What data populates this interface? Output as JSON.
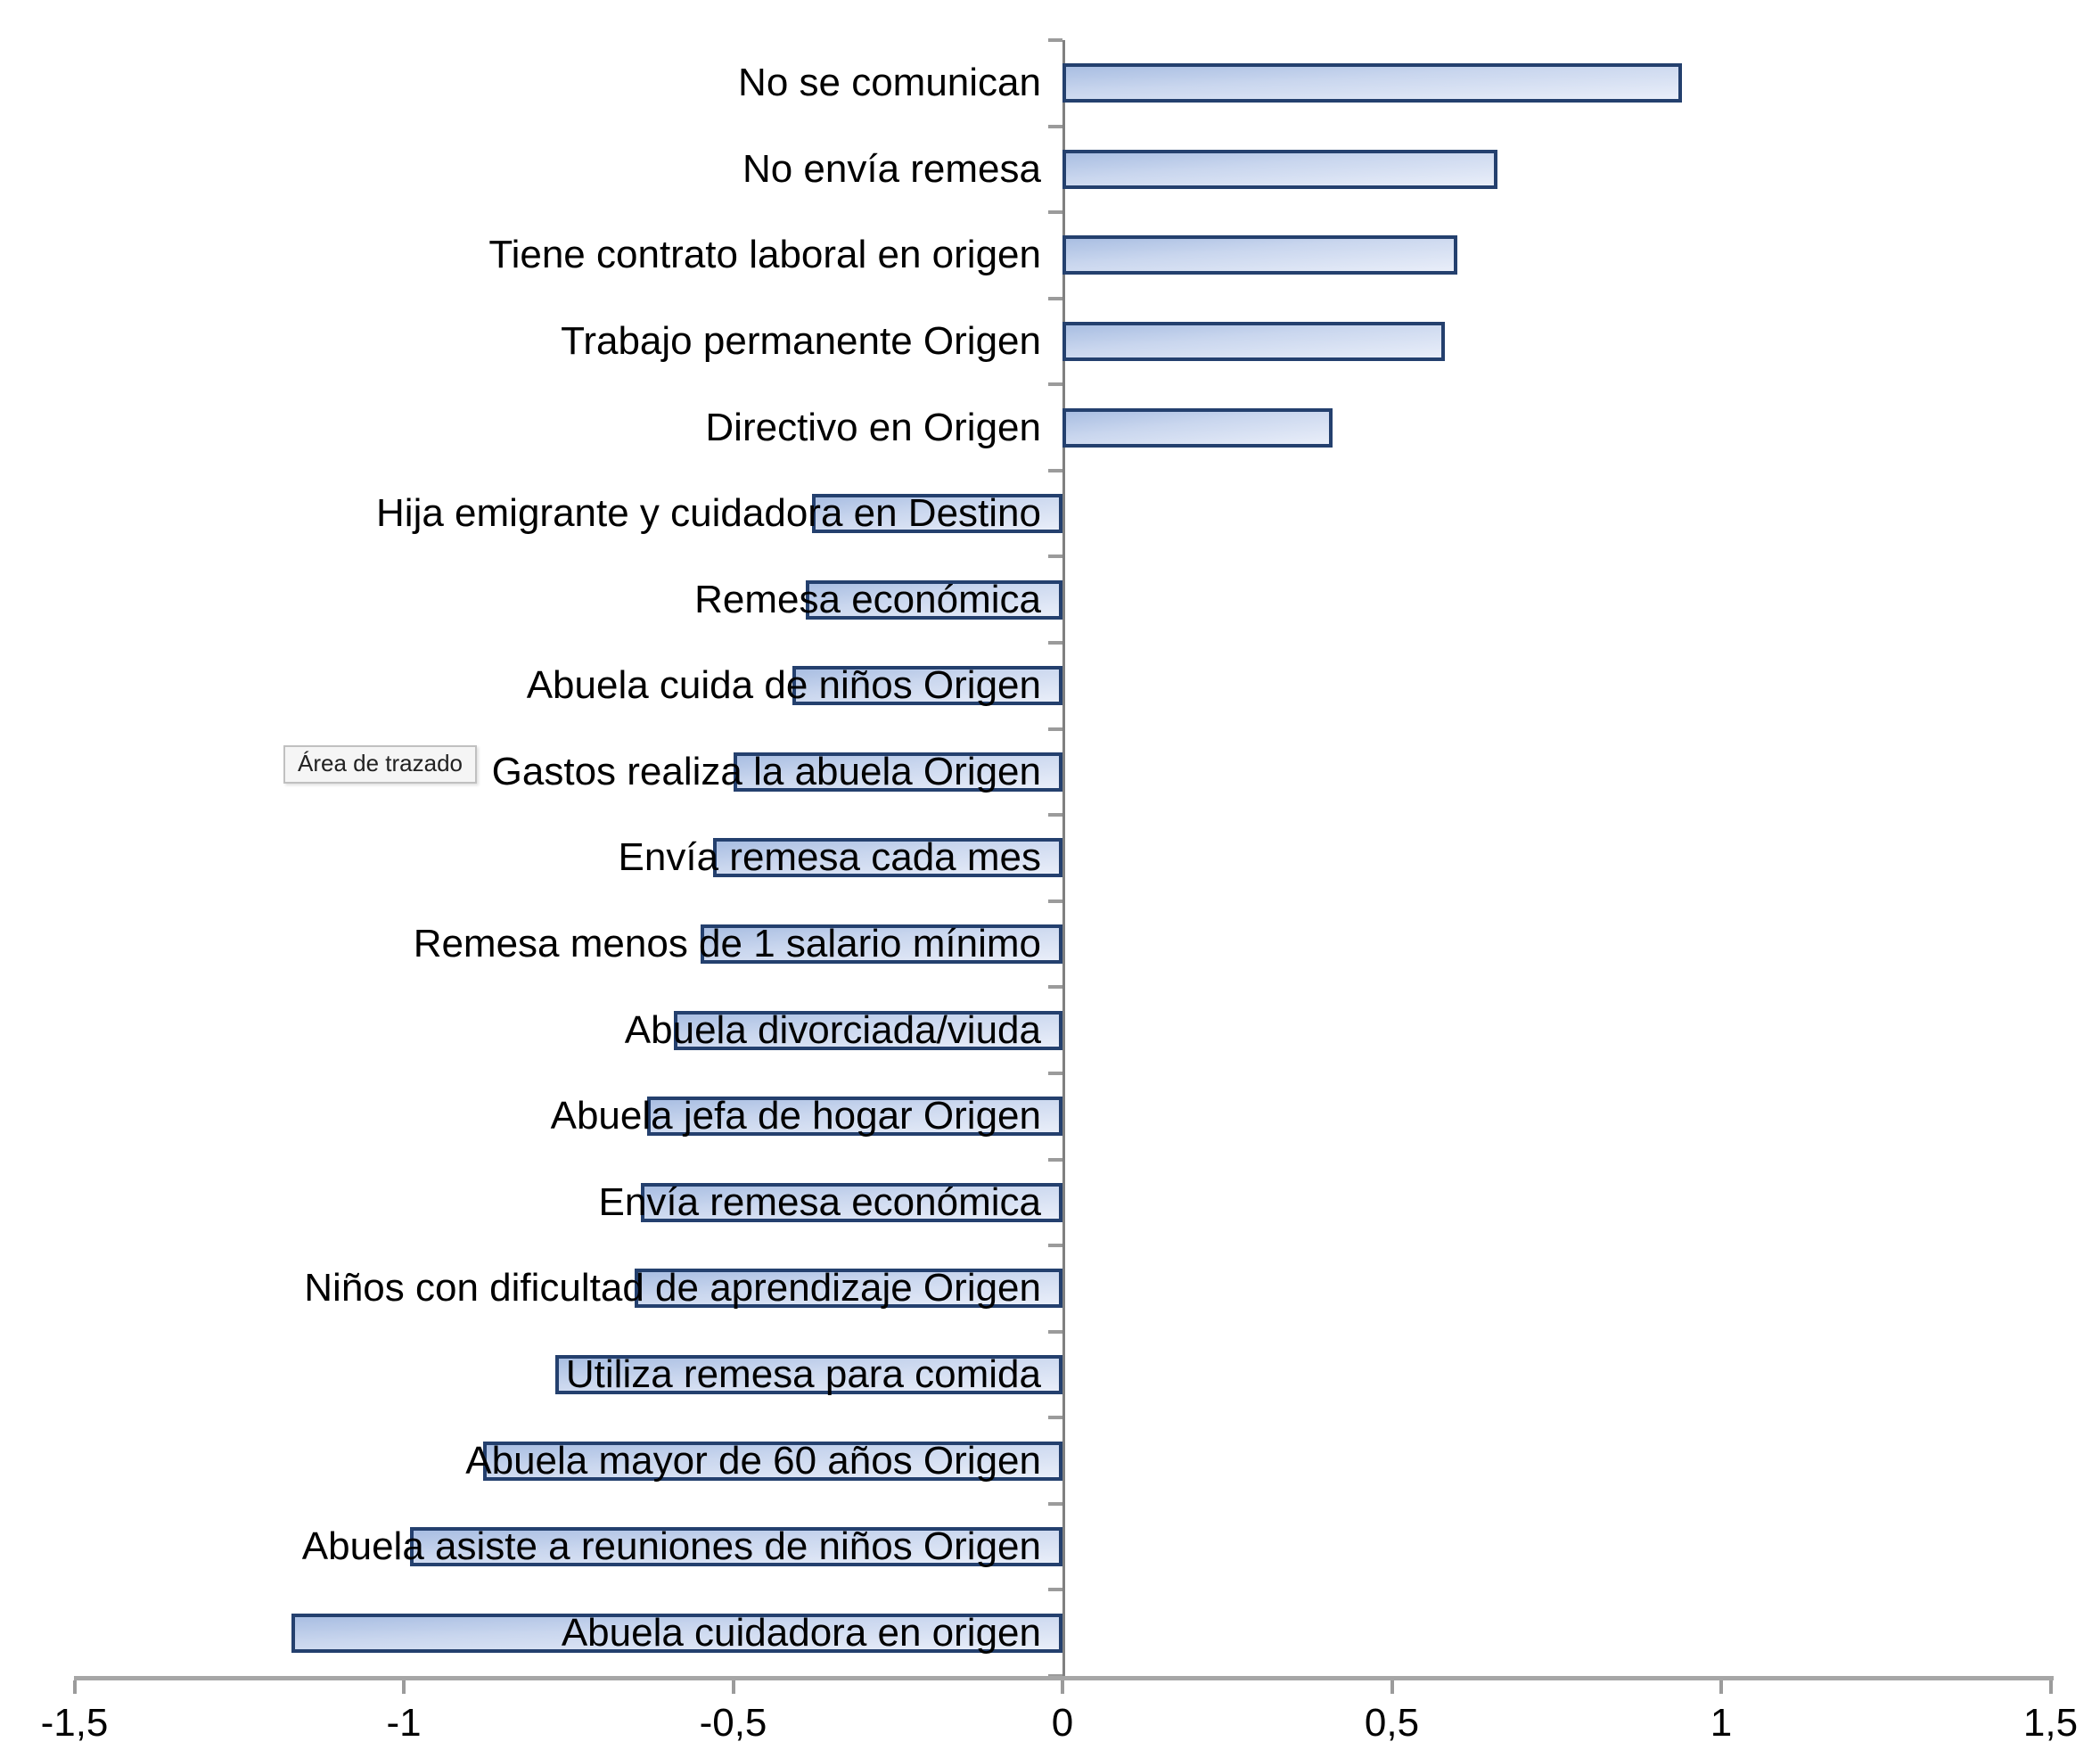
{
  "chart_data": {
    "type": "bar",
    "orientation": "horizontal",
    "title": "",
    "xlabel": "",
    "ylabel": "",
    "categories": [
      "No se comunican",
      "No envía remesa",
      "Tiene contrato laboral en origen",
      "Trabajo permanente Origen",
      "Directivo en Origen",
      "Hija emigrante y cuidadora en Destino",
      "Remesa económica",
      "Abuela cuida de niños Origen",
      "Gastos realiza la abuela Origen",
      "Envía remesa cada mes",
      "Remesa menos de 1 salario mínimo",
      "Abuela divorciada/viuda",
      "Abuela jefa de hogar Origen",
      "Envía remesa económica",
      "Niños con dificultad de aprendizaje Origen",
      "Utiliza remesa para comida",
      "Abuela mayor de 60 años Origen",
      "Abuela asiste a reuniones de niños Origen",
      "Abuela cuidadora en origen"
    ],
    "values": [
      0.94,
      0.66,
      0.6,
      0.58,
      0.41,
      -0.38,
      -0.39,
      -0.41,
      -0.5,
      -0.53,
      -0.55,
      -0.59,
      -0.63,
      -0.64,
      -0.65,
      -0.77,
      -0.88,
      -0.99,
      -1.17
    ],
    "xlim": [
      -1.5,
      1.5
    ],
    "x_tick_values": [
      -1.5,
      -1,
      -0.5,
      0,
      0.5,
      1,
      1.5
    ],
    "x_tick_labels": [
      "-1,5",
      "-1",
      "-0,5",
      "0",
      "0,5",
      "1",
      "1,5"
    ],
    "grid": false,
    "legend": false,
    "plot_area_label": "Área de trazado",
    "colors": {
      "bar_fill_start": "#a9bee2",
      "bar_fill_end": "#e9eef9",
      "bar_border": "#24406e",
      "axis_gray": "#a6a6a6",
      "category_axis_gray": "#808080"
    }
  }
}
